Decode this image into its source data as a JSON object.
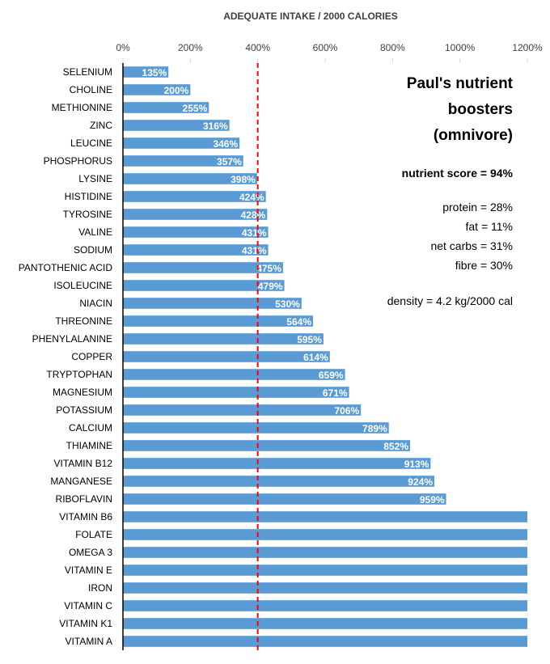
{
  "chart_data": {
    "type": "bar",
    "orientation": "horizontal",
    "title": "ADEQUATE INTAKE / 2000 CALORIES",
    "xlabel": "",
    "ylabel": "",
    "xlim": [
      0,
      1200
    ],
    "x_ticks": [
      0,
      200,
      400,
      600,
      800,
      1000,
      1200
    ],
    "x_tick_labels": [
      "0%",
      "200%",
      "400%",
      "600%",
      "800%",
      "1000%",
      "1200%"
    ],
    "reference_line": {
      "value": 400,
      "style": "dashed",
      "color": "#ff0000"
    },
    "bar_color": "#5b9bd5",
    "label_color": "#ffffff",
    "axis_color": "#000000",
    "tick_color": "#d9d9d9",
    "categories": [
      "SELENIUM",
      "CHOLINE",
      "METHIONINE",
      "ZINC",
      "LEUCINE",
      "PHOSPHORUS",
      "LYSINE",
      "HISTIDINE",
      "TYROSINE",
      "VALINE",
      "SODIUM",
      "PANTOTHENIC ACID",
      "ISOLEUCINE",
      "NIACIN",
      "THREONINE",
      "PHENYLALANINE",
      "COPPER",
      "TRYPTOPHAN",
      "MAGNESIUM",
      "POTASSIUM",
      "CALCIUM",
      "THIAMINE",
      "VITAMIN B12",
      "MANGANESE",
      "RIBOFLAVIN",
      "VITAMIN B6",
      "FOLATE",
      "OMEGA 3",
      "VITAMIN E",
      "IRON",
      "VITAMIN C",
      "VITAMIN K1",
      "VITAMIN A"
    ],
    "values": [
      135,
      200,
      255,
      316,
      346,
      357,
      398,
      424,
      428,
      431,
      431,
      475,
      479,
      530,
      564,
      595,
      614,
      659,
      671,
      706,
      789,
      852,
      913,
      924,
      959,
      1200,
      1200,
      1200,
      1200,
      1200,
      1200,
      1200,
      1200
    ],
    "data_labels": [
      "135%",
      "200%",
      "255%",
      "316%",
      "346%",
      "357%",
      "398%",
      "424%",
      "428%",
      "431%",
      "431%",
      "475%",
      "479%",
      "530%",
      "564%",
      "595%",
      "614%",
      "659%",
      "671%",
      "706%",
      "789%",
      "852%",
      "913%",
      "924%",
      "959%",
      "",
      "",
      "",
      "",
      "",
      "",
      "",
      ""
    ]
  },
  "panel": {
    "title_line1": "Paul's nutrient boosters",
    "title_line2": "(omnivore)",
    "score": "nutrient score = 94%",
    "protein": "protein = 28%",
    "fat": "fat = 11%",
    "net_carbs": "net carbs = 31%",
    "fibre": "fibre = 30%",
    "density": "density = 4.2 kg/2000 cal"
  }
}
